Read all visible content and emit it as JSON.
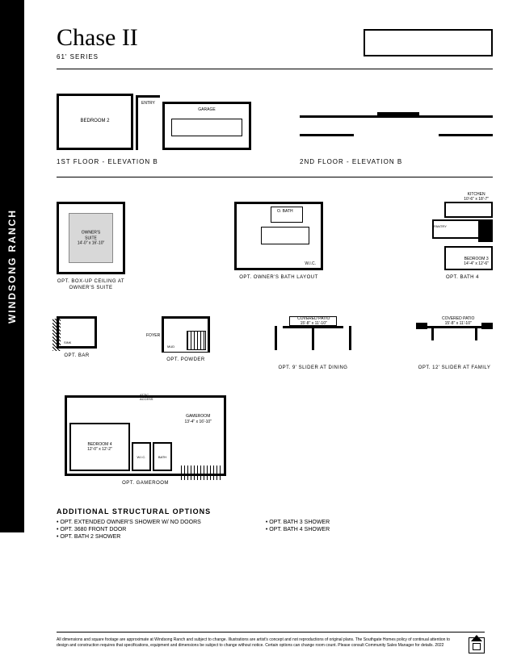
{
  "sidebar": {
    "community": "WINDSONG RANCH"
  },
  "header": {
    "title": "Chase II",
    "series": "61' SERIES"
  },
  "elevations": {
    "left_label": "1ST FLOOR - ELEVATION B",
    "right_label": "2ND FLOOR - ELEVATION B",
    "bedroom2": "BEDROOM 2",
    "entry": "ENTRY",
    "garage": "GARAGE"
  },
  "row1": {
    "owner": {
      "name": "OWNER'S\nSUITE",
      "dim": "14'-0\" x 16'-10\"",
      "caption": "OPT. BOX-UP CEILING AT\nOWNER'S SUITE"
    },
    "obath": {
      "gbath": "O. BATH",
      "wic": "W.I.C.",
      "caption": "OPT. OWNER'S BATH LAYOUT"
    },
    "bath4": {
      "kitchen": "KITCHEN",
      "kdim": "10'-6\" x 18'-7\"",
      "pantry": "PANTRY",
      "bath": "BATH",
      "bed3": "BEDROOM 3",
      "bed3dim": "14'-4\" x 12'-6\"",
      "caption": "OPT. BATH 4"
    }
  },
  "row2": {
    "bar": {
      "sink": "SINK",
      "caption": "OPT. BAR"
    },
    "powder": {
      "foyer": "FOYER",
      "mud": "MUD",
      "caption": "OPT. POWDER"
    },
    "slider9": {
      "patio": "COVERED PATIO",
      "dim": "15'-8\" x 11'-10\"",
      "caption": "OPT. 9' SLIDER AT DINING"
    },
    "slider12": {
      "patio": "COVERED PATIO",
      "dim": "15'-8\" x 11'-10\"",
      "caption": "OPT. 12' SLIDER AT FAMILY"
    }
  },
  "gameroom": {
    "bed4": "BEDROOM 4",
    "bed4dim": "12'-0\" x 12'-2\"",
    "wic": "W.I.C.",
    "bath": "BATH",
    "attic": "ATTIC\nACCESS",
    "name": "GAMEROOM",
    "dim": "13'-4\" x 16'-10\"",
    "caption": "OPT. GAMEROOM"
  },
  "options": {
    "heading": "ADDITIONAL STRUCTURAL OPTIONS",
    "col1": [
      "• OPT. EXTENDED OWNER'S SHOWER W/ NO DOORS",
      "• OPT. 3680 FRONT DOOR",
      "• OPT. BATH 2 SHOWER"
    ],
    "col2": [
      "• OPT. BATH 3 SHOWER",
      "• OPT. BATH 4 SHOWER"
    ]
  },
  "disclaimer": "All dimensions and square footage are approximate at Windsong Ranch and subject to change. Illustrations are artist's concept and not reproductions of original plans. The Southgate Homes policy of continual attention to design and construction requires that specifications, equipment and dimensions be subject to change without notice. Certain options can change room count. Please consult Community Sales Manager for details. 2022"
}
